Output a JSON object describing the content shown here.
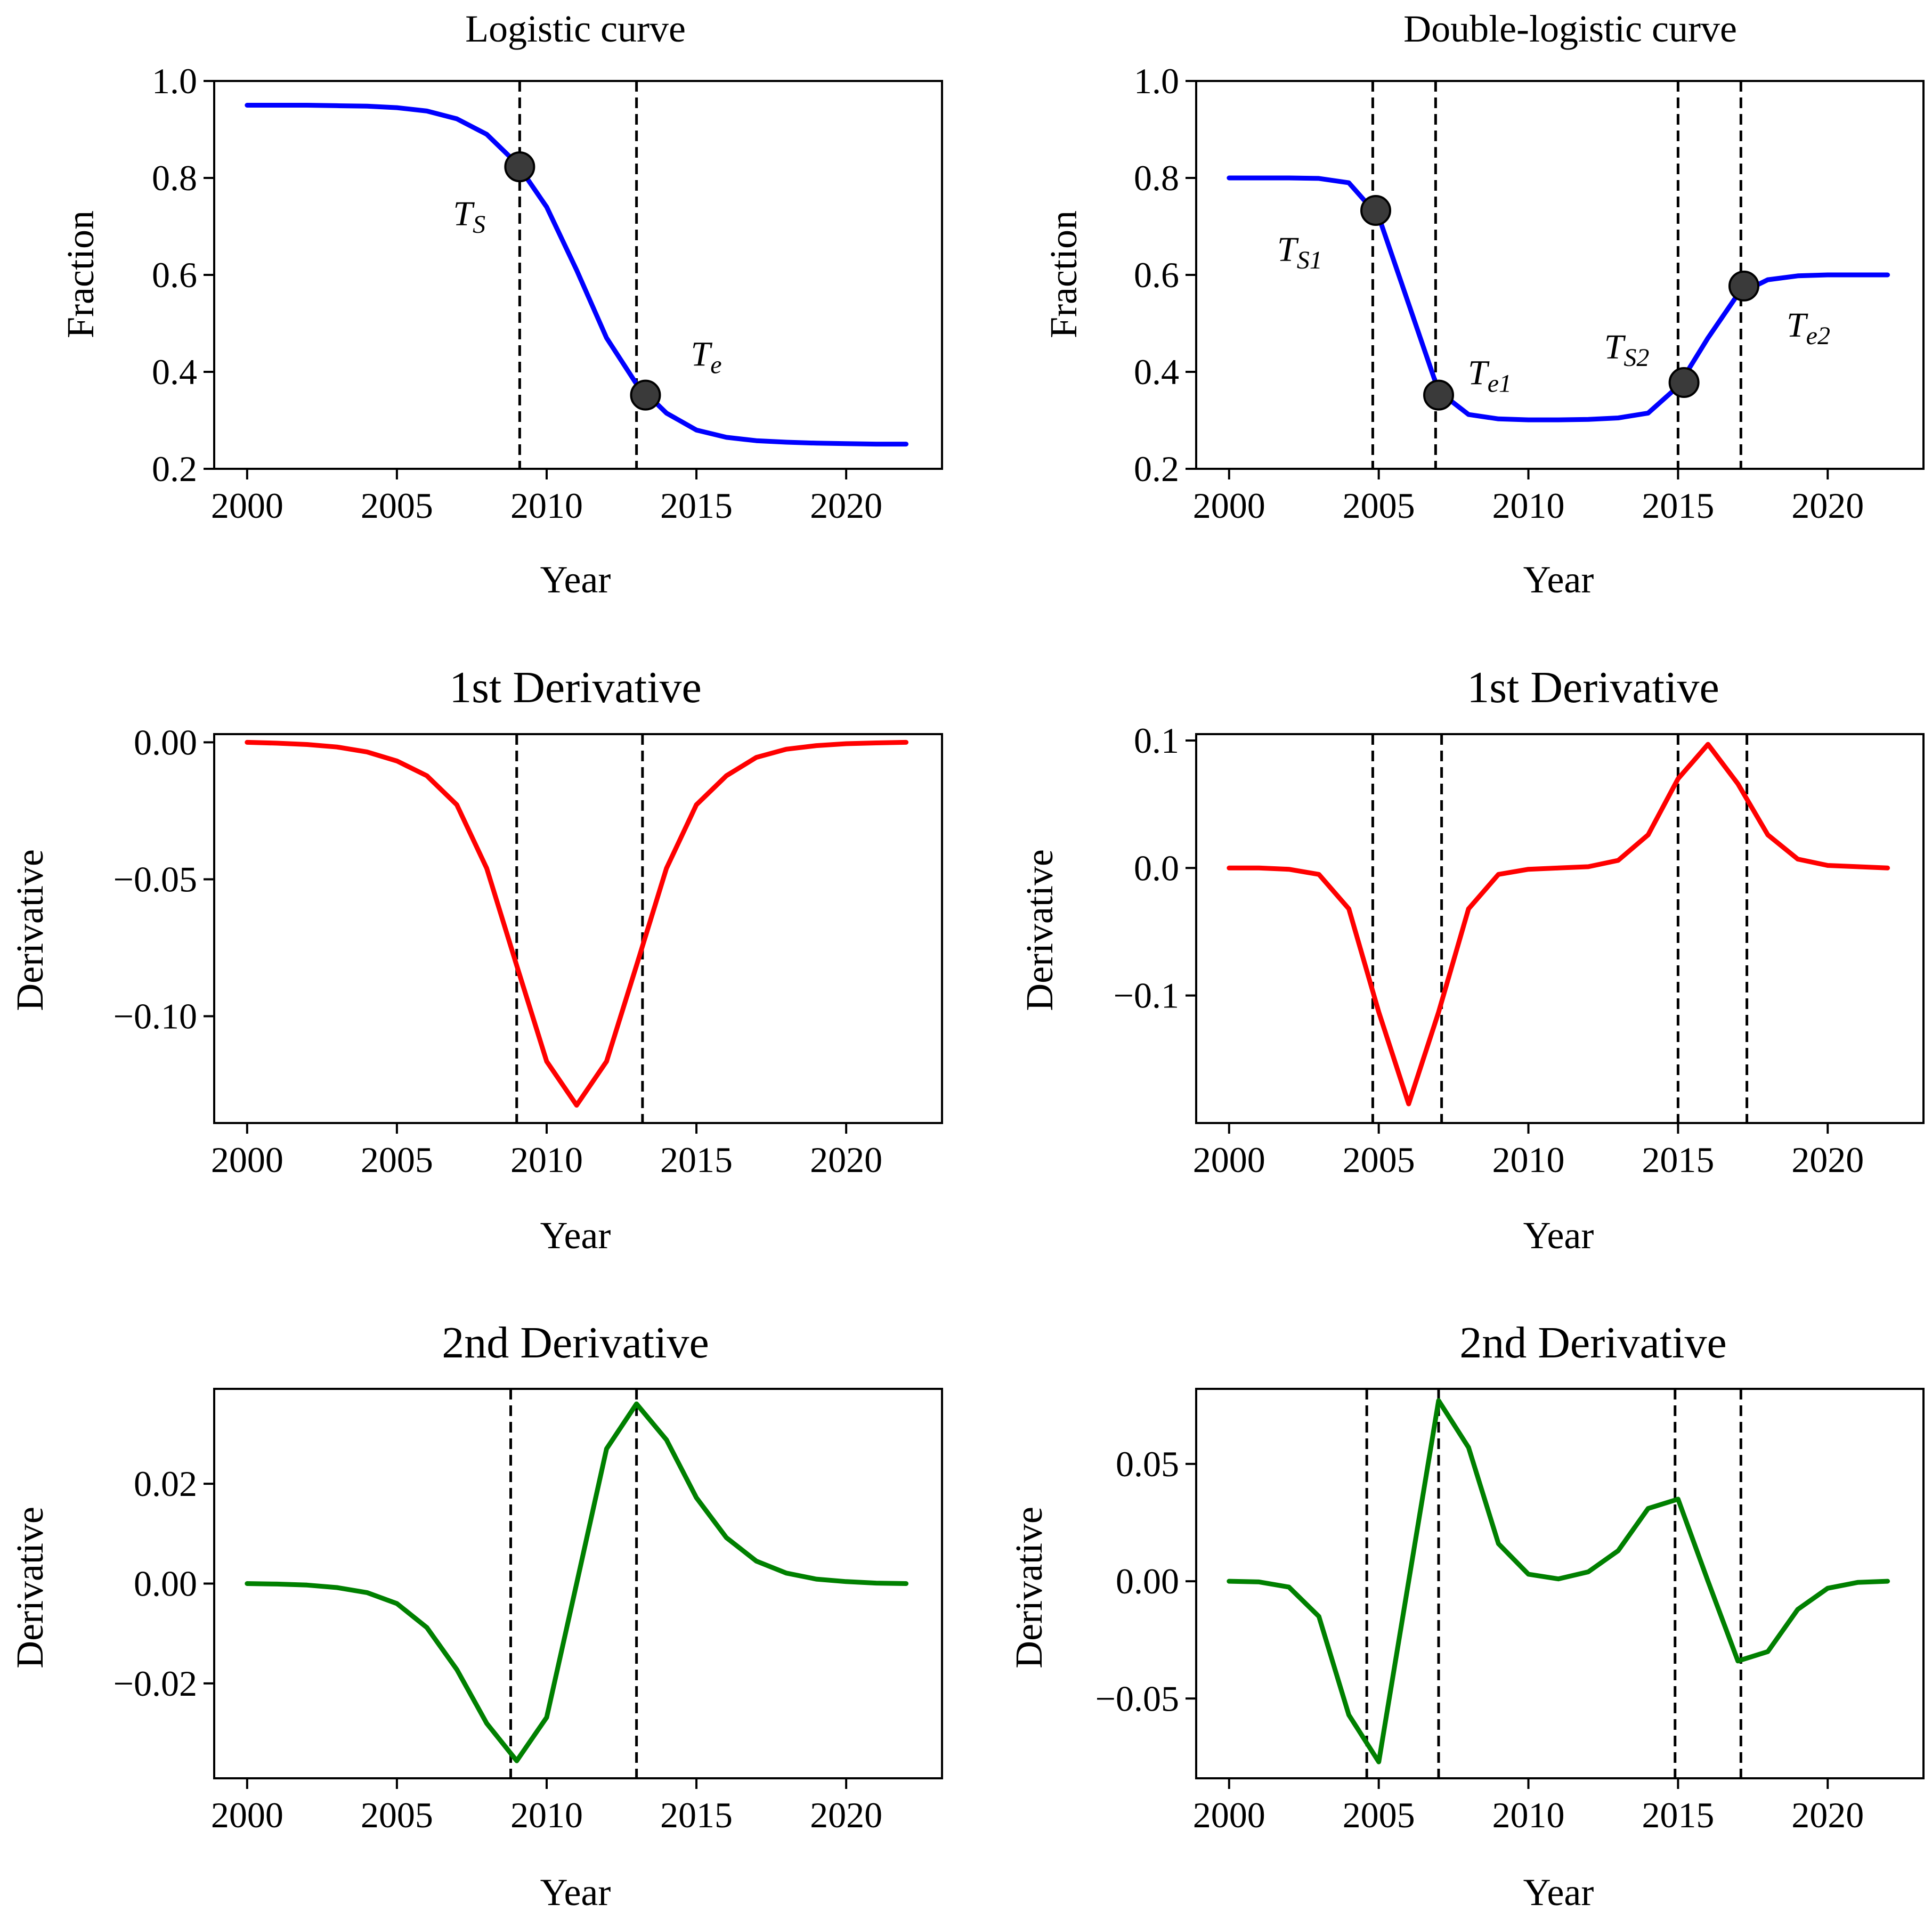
{
  "colors": {
    "logistic_line": "#0000ff",
    "first_derivative_line": "#ff0000",
    "second_derivative_line": "#008000",
    "marker_fill": "#3a3a3a",
    "vline": "#000000"
  },
  "chart_data": [
    {
      "id": "logistic",
      "type": "line",
      "title": "Logistic curve",
      "xlabel": "Year",
      "ylabel": "Fraction",
      "xlim": [
        1998.9,
        2023.2
      ],
      "ylim": [
        0.2,
        1.0
      ],
      "xticks": [
        2000,
        2005,
        2010,
        2015,
        2020
      ],
      "yticks": [
        0.2,
        0.4,
        0.6,
        0.8,
        1.0
      ],
      "ytick_labels": [
        "0.2",
        "0.4",
        "0.6",
        "0.8",
        "1.0"
      ],
      "color_key": "logistic_line",
      "series": [
        {
          "name": "Logistic curve",
          "x": [
            2000,
            2001,
            2002,
            2003,
            2004,
            2005,
            2006,
            2007,
            2008,
            2009,
            2010,
            2011,
            2012,
            2013,
            2014,
            2015,
            2016,
            2017,
            2018,
            2019,
            2020,
            2021,
            2022
          ],
          "values": [
            0.95,
            0.95,
            0.95,
            0.949,
            0.948,
            0.945,
            0.938,
            0.922,
            0.89,
            0.83,
            0.74,
            0.61,
            0.47,
            0.375,
            0.315,
            0.28,
            0.265,
            0.258,
            0.255,
            0.253,
            0.252,
            0.251,
            0.251
          ]
        }
      ],
      "vlines": [
        2009.1,
        2013.0
      ],
      "points": [
        {
          "x": 2009.1,
          "y": 0.823,
          "label": "T",
          "sub": "S"
        },
        {
          "x": 2013.3,
          "y": 0.352,
          "label": "T",
          "sub": "e"
        }
      ]
    },
    {
      "id": "double_logistic",
      "type": "line",
      "title": "Double-logistic curve",
      "xlabel": "Year",
      "ylabel": "Fraction",
      "xlim": [
        1998.9,
        2023.2
      ],
      "ylim": [
        0.2,
        1.0
      ],
      "xticks": [
        2000,
        2005,
        2010,
        2015,
        2020
      ],
      "yticks": [
        0.2,
        0.4,
        0.6,
        0.8,
        1.0
      ],
      "ytick_labels": [
        "0.2",
        "0.4",
        "0.6",
        "0.8",
        "1.0"
      ],
      "color_key": "logistic_line",
      "series": [
        {
          "name": "Double-logistic curve",
          "x": [
            2000,
            2001,
            2002,
            2003,
            2004,
            2005,
            2006,
            2007,
            2008,
            2009,
            2010,
            2011,
            2012,
            2013,
            2014,
            2015,
            2016,
            2017,
            2018,
            2019,
            2020,
            2021,
            2022
          ],
          "values": [
            0.8,
            0.8,
            0.8,
            0.799,
            0.79,
            0.72,
            0.54,
            0.36,
            0.312,
            0.303,
            0.301,
            0.301,
            0.302,
            0.305,
            0.315,
            0.37,
            0.47,
            0.56,
            0.59,
            0.598,
            0.6,
            0.6,
            0.6
          ]
        }
      ],
      "vlines": [
        2004.8,
        2006.9,
        2015.0,
        2017.1
      ],
      "points": [
        {
          "x": 2004.9,
          "y": 0.733,
          "label": "T",
          "sub": "S1"
        },
        {
          "x": 2007.0,
          "y": 0.352,
          "label": "T",
          "sub": "e1"
        },
        {
          "x": 2015.2,
          "y": 0.378,
          "label": "T",
          "sub": "S2"
        },
        {
          "x": 2017.2,
          "y": 0.577,
          "label": "T",
          "sub": "e2"
        }
      ]
    },
    {
      "id": "logistic_d1",
      "type": "line",
      "title": "1st Derivative",
      "xlabel": "Year",
      "ylabel": "Derivative",
      "xlim": [
        1998.9,
        2023.2
      ],
      "ylim": [
        -0.139,
        0.003
      ],
      "xticks": [
        2000,
        2005,
        2010,
        2015,
        2020
      ],
      "yticks": [
        -0.1,
        -0.05,
        0.0
      ],
      "ytick_labels": [
        "−0.10",
        "−0.05",
        "0.00"
      ],
      "color_key": "first_derivative_line",
      "series": [
        {
          "name": "1st Derivative",
          "x": [
            2000,
            2001,
            2002,
            2003,
            2004,
            2005,
            2006,
            2007,
            2008,
            2009,
            2010,
            2011,
            2012,
            2013,
            2014,
            2015,
            2016,
            2017,
            2018,
            2019,
            2020,
            2021,
            2022
          ],
          "values": [
            0,
            -0.0003,
            -0.0008,
            -0.0017,
            -0.0035,
            -0.0068,
            -0.0122,
            -0.0228,
            -0.046,
            -0.0815,
            -0.1165,
            -0.1325,
            -0.1165,
            -0.0815,
            -0.046,
            -0.0228,
            -0.0122,
            -0.0055,
            -0.0025,
            -0.0012,
            -0.0005,
            -0.0002,
            0
          ]
        }
      ],
      "vlines": [
        2009.0,
        2013.2
      ]
    },
    {
      "id": "double_logistic_d1",
      "type": "line",
      "title": "1st Derivative",
      "xlabel": "Year",
      "ylabel": "Derivative",
      "xlim": [
        1998.9,
        2023.2
      ],
      "ylim": [
        -0.2,
        0.105
      ],
      "xticks": [
        2000,
        2005,
        2010,
        2015,
        2020
      ],
      "yticks": [
        -0.1,
        0.0,
        0.1
      ],
      "ytick_labels": [
        "−0.1",
        "0.0",
        "0.1"
      ],
      "color_key": "first_derivative_line",
      "series": [
        {
          "name": "1st Derivative",
          "x": [
            2000,
            2001,
            2002,
            2003,
            2004,
            2005,
            2006,
            2007,
            2008,
            2009,
            2010,
            2011,
            2012,
            2013,
            2014,
            2015,
            2016,
            2017,
            2018,
            2019,
            2020,
            2021,
            2022
          ],
          "values": [
            0,
            0,
            -0.001,
            -0.005,
            -0.032,
            -0.113,
            -0.185,
            -0.113,
            -0.032,
            -0.005,
            -0.001,
            0,
            0.001,
            0.006,
            0.026,
            0.07,
            0.097,
            0.066,
            0.026,
            0.007,
            0.002,
            0.001,
            0
          ]
        }
      ],
      "vlines": [
        2004.8,
        2007.1,
        2015.0,
        2017.3
      ]
    },
    {
      "id": "logistic_d2",
      "type": "line",
      "title": "2nd Derivative",
      "xlabel": "Year",
      "ylabel": "Derivative",
      "xlim": [
        1998.9,
        2023.2
      ],
      "ylim": [
        -0.039,
        0.039
      ],
      "xticks": [
        2000,
        2005,
        2010,
        2015,
        2020
      ],
      "yticks": [
        -0.02,
        0.0,
        0.02
      ],
      "ytick_labels": [
        "−0.02",
        "0.00",
        "0.02"
      ],
      "color_key": "second_derivative_line",
      "series": [
        {
          "name": "2nd Derivative",
          "x": [
            2000,
            2001,
            2002,
            2003,
            2004,
            2005,
            2006,
            2007,
            2008,
            2009,
            2010,
            2011,
            2012,
            2013,
            2014,
            2015,
            2016,
            2017,
            2018,
            2019,
            2020,
            2021,
            2022
          ],
          "values": [
            0,
            -0.0001,
            -0.0003,
            -0.0008,
            -0.0018,
            -0.004,
            -0.0088,
            -0.0172,
            -0.028,
            -0.0355,
            -0.0268,
            0,
            0.027,
            0.036,
            0.0288,
            0.0172,
            0.0092,
            0.0045,
            0.0021,
            0.0009,
            0.0004,
            0.0001,
            0
          ]
        }
      ],
      "vlines": [
        2008.8,
        2013.0
      ]
    },
    {
      "id": "double_logistic_d2",
      "type": "line",
      "title": "2nd Derivative",
      "xlabel": "Year",
      "ylabel": "Derivative",
      "xlim": [
        1998.9,
        2023.2
      ],
      "ylim": [
        -0.084,
        0.082
      ],
      "xticks": [
        2000,
        2005,
        2010,
        2015,
        2020
      ],
      "yticks": [
        -0.05,
        0.0,
        0.05
      ],
      "ytick_labels": [
        "−0.05",
        "0.00",
        "0.05"
      ],
      "color_key": "second_derivative_line",
      "series": [
        {
          "name": "2nd Derivative",
          "x": [
            2000,
            2001,
            2002,
            2003,
            2004,
            2005,
            2006,
            2007,
            2008,
            2009,
            2010,
            2011,
            2012,
            2013,
            2014,
            2015,
            2016,
            2017,
            2018,
            2019,
            2020,
            2021,
            2022
          ],
          "values": [
            0,
            -0.0003,
            -0.0025,
            -0.015,
            -0.057,
            -0.077,
            0,
            0.077,
            0.057,
            0.016,
            0.003,
            0.001,
            0.004,
            0.013,
            0.031,
            0.035,
            0,
            -0.034,
            -0.03,
            -0.012,
            -0.003,
            -0.0005,
            0
          ]
        }
      ],
      "vlines": [
        2004.6,
        2007.0,
        2014.9,
        2017.1
      ]
    }
  ]
}
